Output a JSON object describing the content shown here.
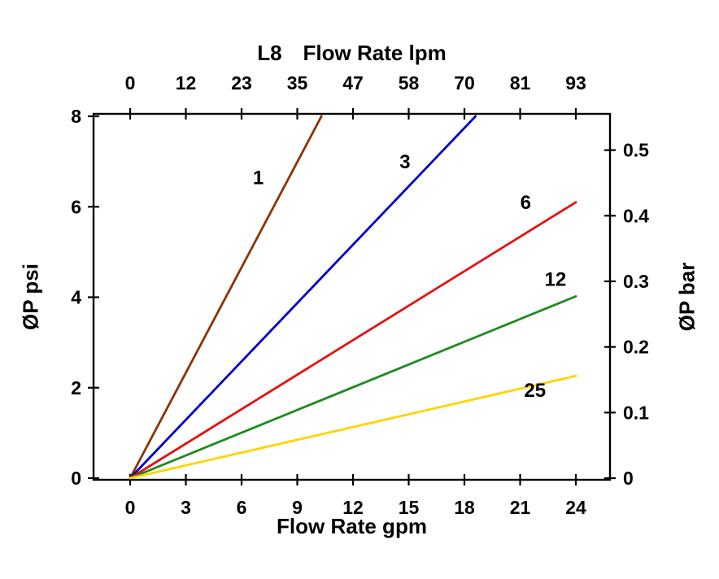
{
  "chart": {
    "title_model": "L8",
    "title_top": "Flow Rate lpm",
    "xlabel_bottom": "Flow Rate gpm",
    "ylabel_left": "ØP psi",
    "ylabel_right": "ØP bar"
  },
  "chart_data": {
    "type": "line",
    "title": "L8 Flow Rate lpm",
    "grid": false,
    "legend": "inline-labels",
    "x_bottom": {
      "label": "Flow Rate gpm",
      "ticks": [
        0,
        3,
        6,
        9,
        12,
        15,
        18,
        21,
        24
      ],
      "range": [
        0,
        24
      ]
    },
    "x_top": {
      "label": "L8 Flow Rate lpm",
      "ticks": [
        0,
        12,
        23,
        35,
        47,
        58,
        70,
        81,
        93
      ]
    },
    "y_left": {
      "label": "ØP psi",
      "ticks": [
        0,
        2,
        4,
        6,
        8
      ],
      "range": [
        0,
        8
      ]
    },
    "y_right": {
      "label": "ØP bar",
      "ticks": [
        0,
        0.1,
        0.2,
        0.3,
        0.4,
        0.5
      ],
      "psi_per_bar": 14.5038
    },
    "series": [
      {
        "name": "1",
        "color": "#8a3306",
        "points": [
          [
            0,
            0
          ],
          [
            10.3,
            8
          ]
        ],
        "label_at": [
          6.9,
          6.5
        ]
      },
      {
        "name": "3",
        "color": "#0000cc",
        "points": [
          [
            0,
            0
          ],
          [
            18.6,
            8
          ]
        ],
        "label_at": [
          14.8,
          6.85
        ]
      },
      {
        "name": "6",
        "color": "#e81010",
        "points": [
          [
            0,
            0
          ],
          [
            24,
            6.1
          ]
        ],
        "label_at": [
          21.3,
          5.95
        ]
      },
      {
        "name": "12",
        "color": "#1e8a1e",
        "points": [
          [
            0,
            0
          ],
          [
            24,
            4.02
          ]
        ],
        "label_at": [
          22.9,
          4.25
        ]
      },
      {
        "name": "25",
        "color": "#ffd400",
        "points": [
          [
            0,
            0
          ],
          [
            24,
            2.26
          ]
        ],
        "label_at": [
          21.8,
          1.8
        ]
      }
    ]
  }
}
